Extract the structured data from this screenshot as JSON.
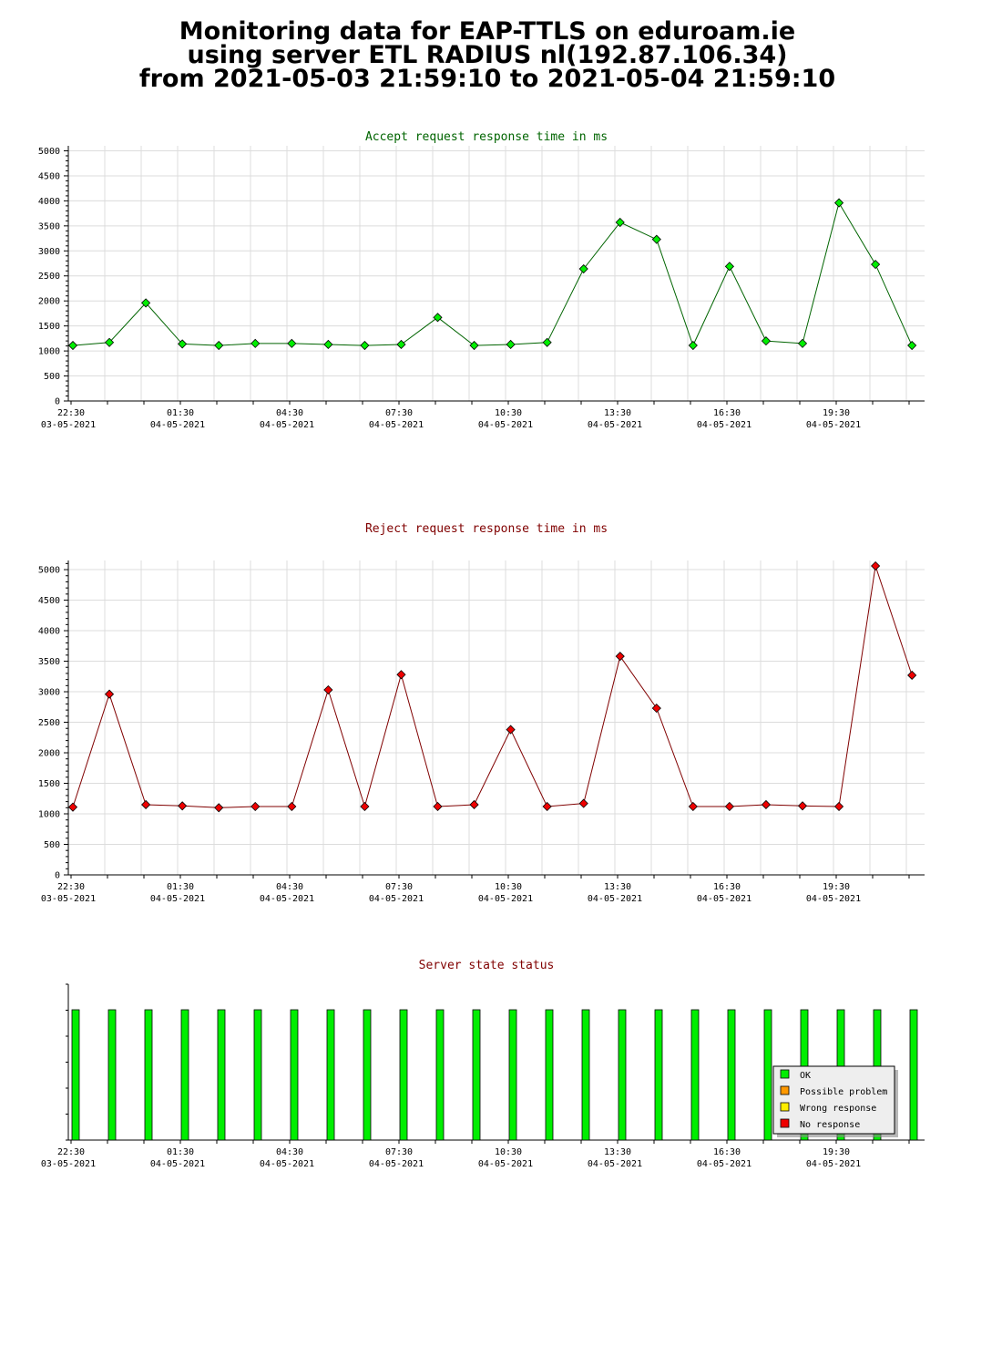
{
  "page": {
    "title_lines": [
      "Monitoring data for EAP-TTLS on eduroam.ie",
      "using server ETL RADIUS nl(192.87.106.34)",
      "from 2021-05-03 21:59:10 to 2021-05-04 21:59:10"
    ]
  },
  "colors": {
    "accept_line": "#006400",
    "accept_marker": "#00ee00",
    "reject_line": "#800000",
    "reject_marker": "#ee0000",
    "grid": "#dcdcdc",
    "status_ok": "#00ee00",
    "status_possible_problem": "#ff9900",
    "status_wrong_response": "#ffee00",
    "status_no_response": "#ee0000"
  },
  "x_ticks": [
    {
      "time": "22:30",
      "date": "03-05-2021"
    },
    {
      "time": "01:30",
      "date": "04-05-2021"
    },
    {
      "time": "04:30",
      "date": "04-05-2021"
    },
    {
      "time": "07:30",
      "date": "04-05-2021"
    },
    {
      "time": "10:30",
      "date": "04-05-2021"
    },
    {
      "time": "13:30",
      "date": "04-05-2021"
    },
    {
      "time": "16:30",
      "date": "04-05-2021"
    },
    {
      "time": "19:30",
      "date": "04-05-2021"
    }
  ],
  "chart_data": [
    {
      "type": "line",
      "title": "Accept request response time in ms",
      "ylim": [
        0,
        5100
      ],
      "y_ticks": [
        0,
        500,
        1000,
        1500,
        2000,
        2500,
        3000,
        3500,
        4000,
        4500,
        5000
      ],
      "x_ticks": [
        "22:30 03-05-2021",
        "01:30 04-05-2021",
        "04:30 04-05-2021",
        "07:30 04-05-2021",
        "10:30 04-05-2021",
        "13:30 04-05-2021",
        "16:30 04-05-2021",
        "19:30 04-05-2021"
      ],
      "values": [
        1110,
        1170,
        1960,
        1140,
        1110,
        1150,
        1150,
        1130,
        1110,
        1130,
        1670,
        1110,
        1130,
        1170,
        2640,
        3570,
        3230,
        1110,
        2690,
        1200,
        1150,
        3960,
        2730,
        1110
      ],
      "grid": true
    },
    {
      "type": "line",
      "title": "Reject request response time in ms",
      "ylim": [
        0,
        5150
      ],
      "y_ticks": [
        0,
        500,
        1000,
        1500,
        2000,
        2500,
        3000,
        3500,
        4000,
        4500,
        5000
      ],
      "x_ticks": [
        "22:30 03-05-2021",
        "01:30 04-05-2021",
        "04:30 04-05-2021",
        "07:30 04-05-2021",
        "10:30 04-05-2021",
        "13:30 04-05-2021",
        "16:30 04-05-2021",
        "19:30 04-05-2021"
      ],
      "values": [
        1110,
        2960,
        1150,
        1130,
        1100,
        1120,
        1120,
        3030,
        1120,
        3280,
        1120,
        1150,
        2380,
        1120,
        1170,
        3580,
        2730,
        1120,
        1120,
        1150,
        1130,
        1120,
        5060,
        3270
      ],
      "grid": true
    },
    {
      "type": "bar",
      "title": "Server state status",
      "status_values": [
        "OK",
        "OK",
        "OK",
        "OK",
        "OK",
        "OK",
        "OK",
        "OK",
        "OK",
        "OK",
        "OK",
        "OK",
        "OK",
        "OK",
        "OK",
        "OK",
        "OK",
        "OK",
        "OK",
        "OK",
        "OK",
        "OK",
        "OK",
        "OK"
      ],
      "x_ticks": [
        "22:30 03-05-2021",
        "01:30 04-05-2021",
        "04:30 04-05-2021",
        "07:30 04-05-2021",
        "10:30 04-05-2021",
        "13:30 04-05-2021",
        "16:30 04-05-2021",
        "19:30 04-05-2021"
      ],
      "legend": [
        "OK",
        "Possible problem",
        "Wrong response",
        "No response"
      ],
      "legend_placement": "right",
      "grid": false
    }
  ]
}
